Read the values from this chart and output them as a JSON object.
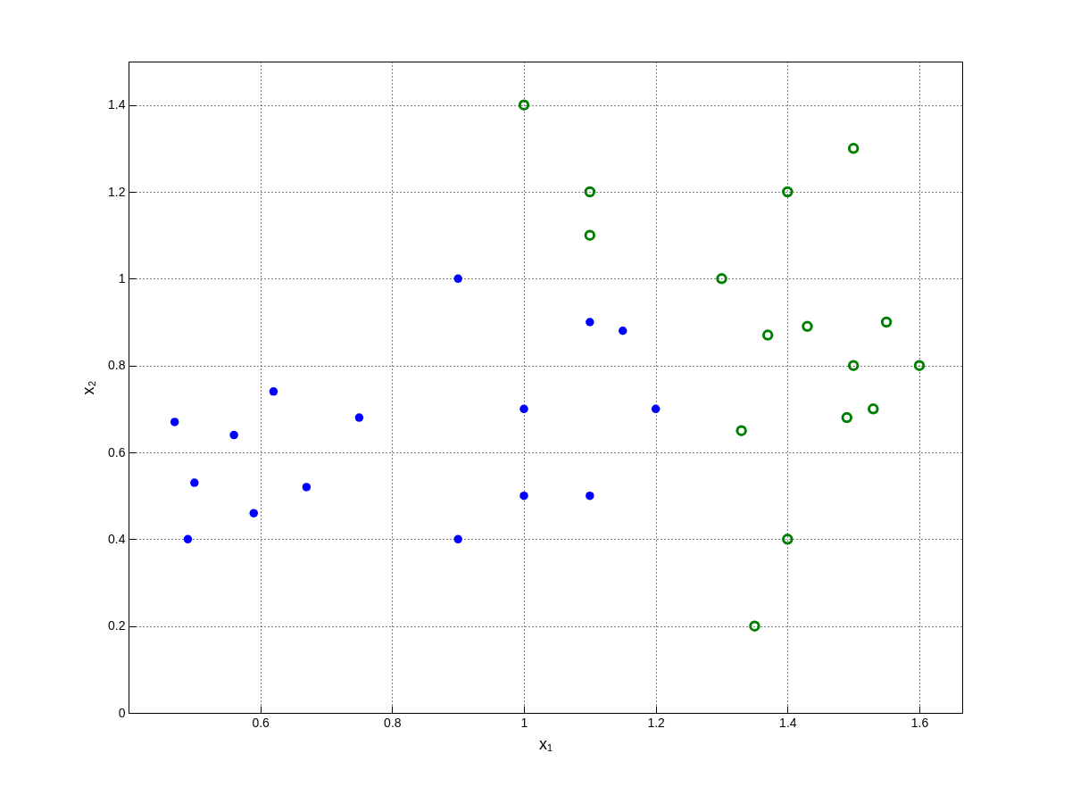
{
  "chart_data": {
    "type": "scatter",
    "xlabel": "x₁",
    "ylabel": "x₂",
    "xlim": [
      0.4,
      1.665
    ],
    "xticks": [
      0.6,
      0.8,
      1,
      1.2,
      1.4,
      1.6
    ],
    "ylim": [
      0,
      1.5
    ],
    "yticks": [
      0,
      0.2,
      0.4,
      0.6,
      0.8,
      1,
      1.2,
      1.4
    ],
    "grid": true,
    "marker": "circle",
    "series": [
      {
        "color": "#0000ff",
        "x": [
          0.47,
          0.49,
          0.5,
          0.56,
          0.59,
          0.62,
          0.67,
          0.75,
          0.9,
          0.9,
          1.0,
          1.0,
          1.1,
          1.1,
          1.15,
          1.2
        ],
        "values": [
          0.67,
          0.4,
          0.53,
          0.64,
          0.46,
          0.74,
          0.52,
          0.68,
          1.0,
          0.4,
          0.7,
          0.5,
          0.9,
          0.5,
          0.88,
          0.7
        ]
      },
      {
        "color": "#008000",
        "x": [
          1.0,
          1.1,
          1.1,
          1.3,
          1.33,
          1.35,
          1.37,
          1.4,
          1.4,
          1.43,
          1.49,
          1.5,
          1.5,
          1.53,
          1.55,
          1.6
        ],
        "values": [
          1.4,
          1.2,
          1.1,
          1.0,
          0.65,
          0.2,
          0.87,
          1.2,
          0.4,
          0.89,
          0.68,
          1.3,
          0.8,
          0.7,
          0.9,
          0.8
        ]
      }
    ]
  }
}
